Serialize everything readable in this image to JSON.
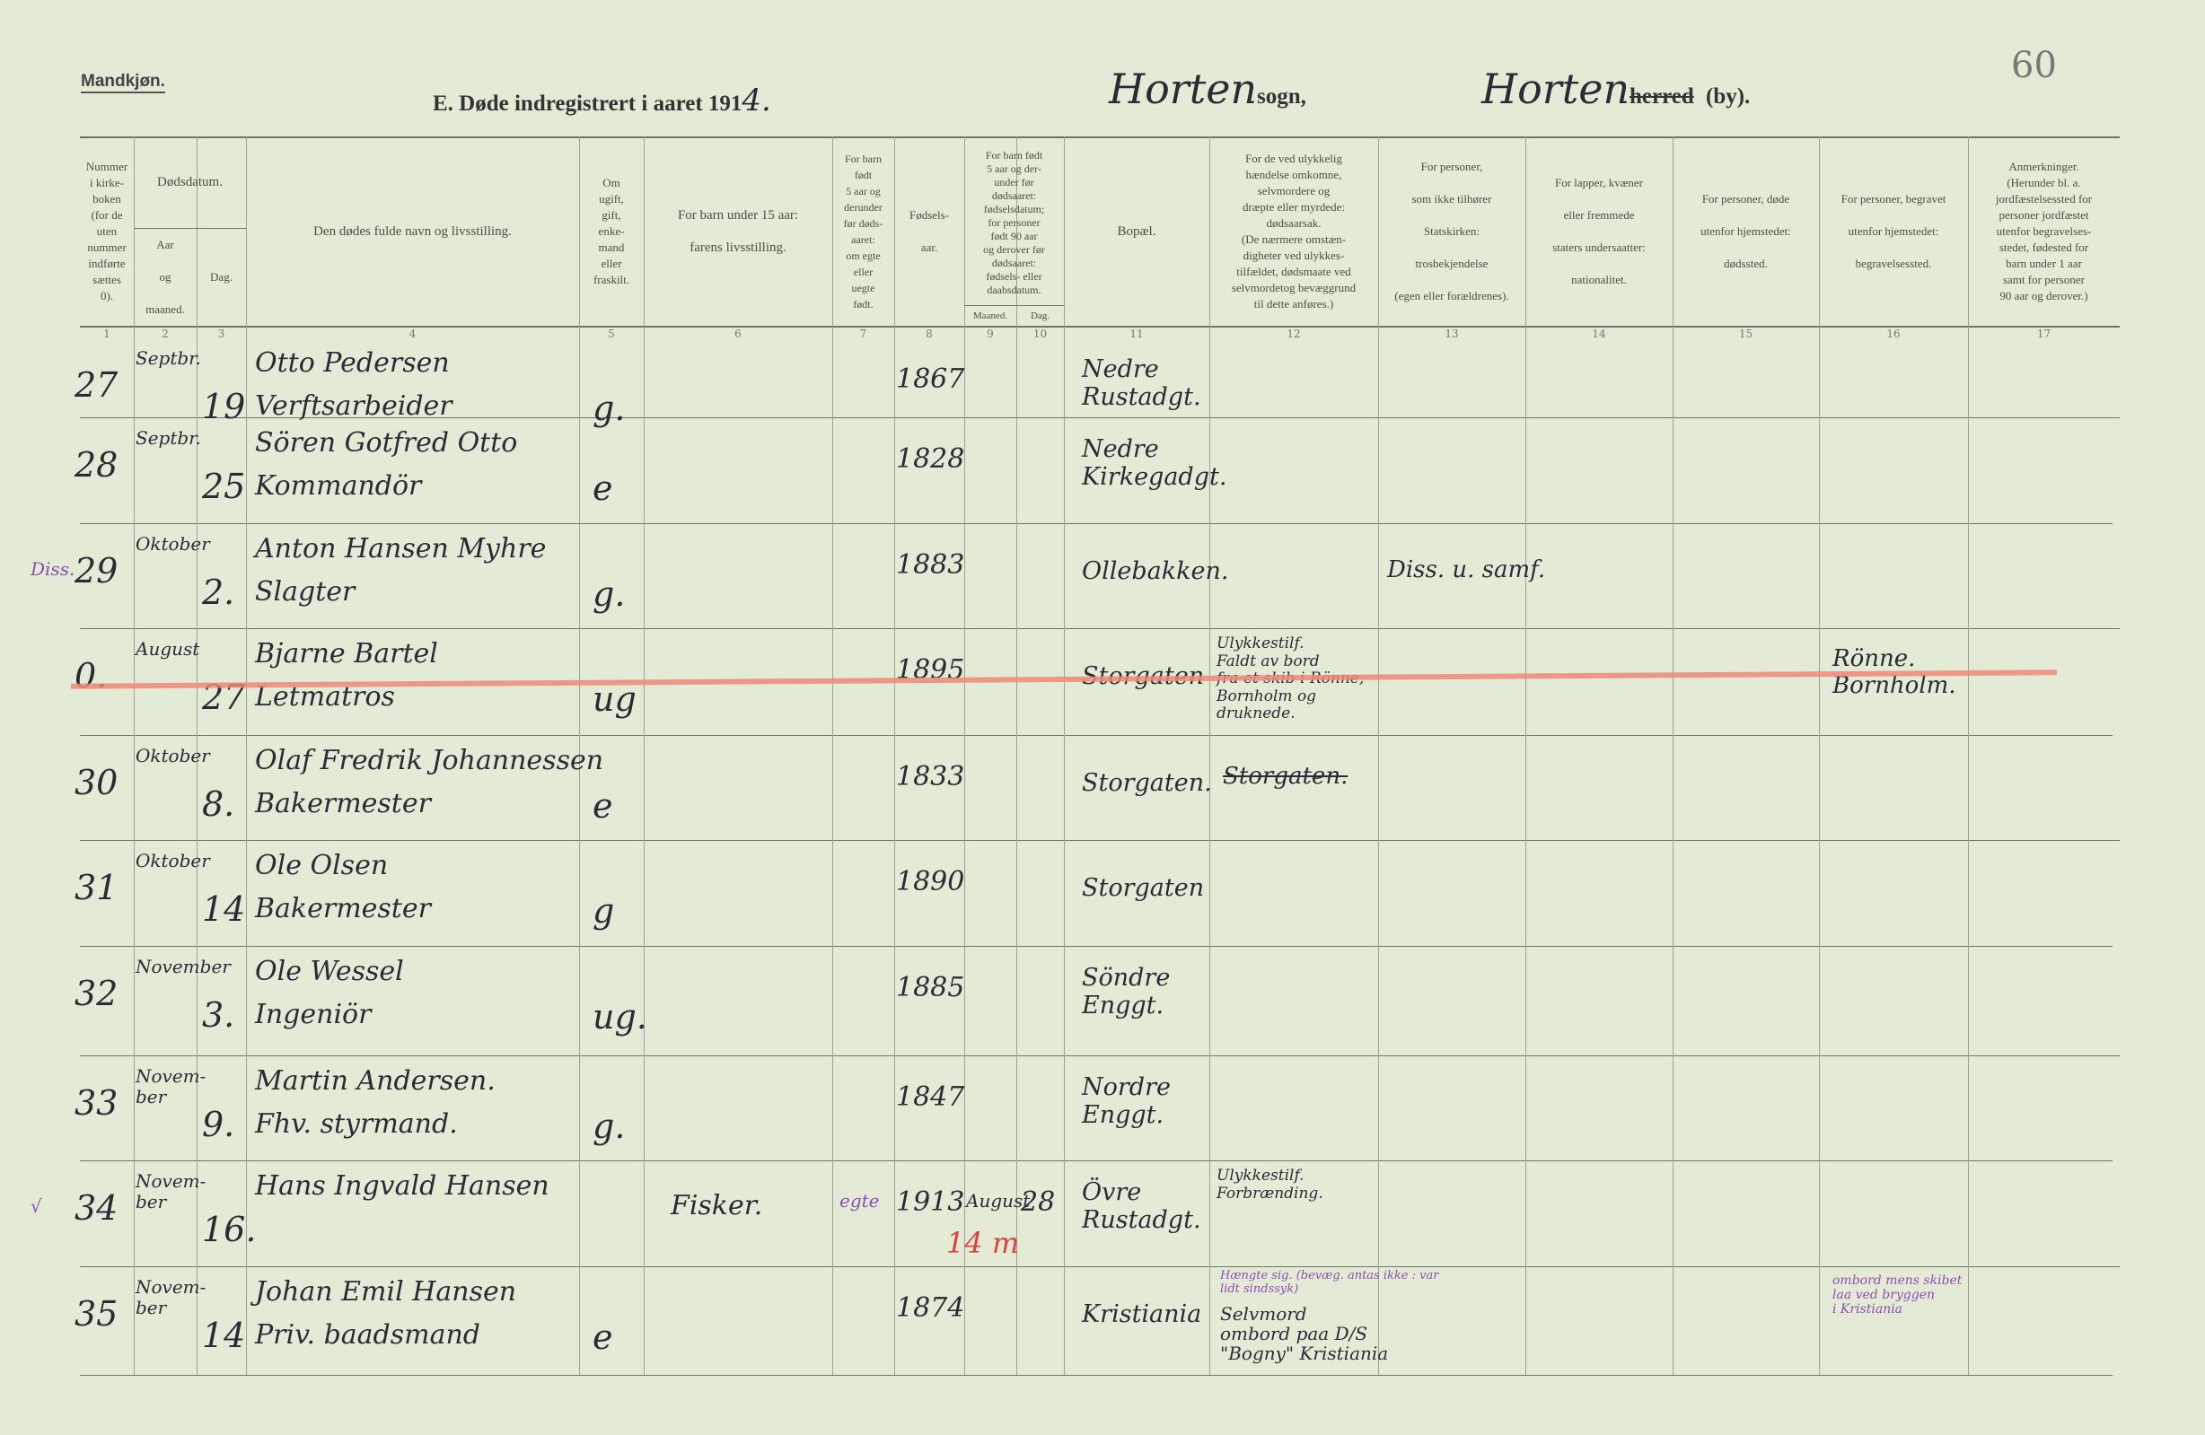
{
  "form": {
    "sex_label": "Mandkjøn.",
    "title_prefix": "E.  Døde indregistrert i aaret 191",
    "year_hand": "4.",
    "parish_hand": "Horten",
    "parish_label": "sogn,",
    "municipality_hand": "Horten",
    "municipality_struck": "herred",
    "municipality_label": "(by).",
    "page_number": "60"
  },
  "headers": {
    "c1": "Nummer\ni kirke-\nboken\n(for de\nuten\nnummer\nindførte\nsættes\n0).",
    "c2_3": "Dødsdatum.",
    "c2": "Aar\n\nog\n\nmaaned.",
    "c3": "Dag.",
    "c4": "Den dødes fulde navn og livsstilling.",
    "c5": "Om\nugift,\ngift,\nenke-\nmand\neller\nfraskilt.",
    "c6": "For barn under 15 aar:\n\nfarens livsstilling.",
    "c7": "For barn\nfødt\n5 aar og\nderunder\nfør døds-\naaret:\nom egte\neller\nuegte\nfødt.",
    "c8": "Fødsels-\n\naar.",
    "c9_10": "For barn født\n5 aar og der-\nunder før\ndødsaaret:\nfødselsdatum;\nfor personer\nfødt 90 aar\nog derover før\ndødsaaret:\nfødsels- eller\ndaabsdatum.",
    "c9": "Maaned.",
    "c10": "Dag.",
    "c11": "Bopæl.",
    "c12": "For de ved ulykkelig\nhændelse omkomne,\nselvmordere og\ndræpte eller myrdede:\ndødsaarsak.\n(De nærmere omstæn-\ndigheter ved ulykkes-\ntilfældet, dødsmaate ved\nselvmordetog bevæggrund\ntil dette anføres.)",
    "c13": "For personer,\n\nsom ikke tilhører\n\nStatskirken:\n\ntrosbekjendelse\n\n(egen eller forældrenes).",
    "c14": "For lapper, kvæner\n\neller fremmede\n\nstaters undersaatter:\n\nnationalitet.",
    "c15": "For personer, døde\n\nutenfor hjemstedet:\n\ndødssted.",
    "c16": "For personer, begravet\n\nutenfor hjemstedet:\n\nbegravelsessted.",
    "c17": "Anmerkninger.\n(Herunder bl. a.\njordfæstelsessted for\npersoner jordfæstet\nutenfor begravelses-\nstedet, fødested for\nbarn under 1 aar\nsamt for personer\n90 aar og derover.)",
    "column_numbers": [
      "1",
      "2",
      "3",
      "4",
      "5",
      "6",
      "7",
      "8",
      "9",
      "10",
      "11",
      "12",
      "13",
      "14",
      "15",
      "16",
      "17"
    ]
  },
  "rows": [
    {
      "no": "27",
      "month": "Septbr.",
      "day": "19",
      "name": "Otto Pedersen",
      "occupation": "Verftsarbeider",
      "status": "g.",
      "birth_year": "1867",
      "residence": "Nedre\nRustadgt."
    },
    {
      "no": "28",
      "month": "Septbr.",
      "day": "25",
      "name": "Sören Gotfred Otto",
      "occupation": "Kommandör",
      "status": "e",
      "birth_year": "1828",
      "residence": "Nedre\nKirkegadgt."
    },
    {
      "no": "29",
      "month": "Oktober",
      "day": "2.",
      "name": "Anton Hansen Myhre",
      "occupation": "Slagter",
      "status": "g.",
      "birth_year": "1883",
      "residence": "Ollebakken.",
      "religion": "Diss. u. samf.",
      "margin": "Diss."
    },
    {
      "no": "0.",
      "month": "August",
      "day": "27",
      "name": "Bjarne Bartel",
      "occupation": "Letmatros",
      "status": "ug",
      "birth_year": "1895",
      "residence": "Storgaten",
      "cause": "Ulykkestilf.\nFaldt av bord\nfra et skib i Rönne,\nBornholm og\ndruknede.",
      "burial_place": "Rönne.\nBornholm.",
      "struck": true
    },
    {
      "no": "30",
      "month": "Oktober",
      "day": "8.",
      "name": "Olaf Fredrik Johannessen",
      "occupation": "Bakermester",
      "status": "e",
      "birth_year": "1833",
      "residence": "Storgaten.",
      "cause_struck": "Storgaten."
    },
    {
      "no": "31",
      "month": "Oktober",
      "day": "14",
      "name": "Ole Olsen",
      "occupation": "Bakermester",
      "status": "g",
      "birth_year": "1890",
      "residence": "Storgaten"
    },
    {
      "no": "32",
      "month": "November",
      "day": "3.",
      "name": "Ole Wessel",
      "occupation": "Ingeniör",
      "status": "ug.",
      "birth_year": "1885",
      "residence": "Söndre\nEnggt."
    },
    {
      "no": "33",
      "month": "Novem-\nber",
      "day": "9.",
      "name": "Martin Andersen.",
      "occupation": "Fhv. styrmand.",
      "status": "g.",
      "birth_year": "1847",
      "residence": "Nordre\nEnggt."
    },
    {
      "no": "34",
      "month": "Novem-\nber",
      "day": "16.",
      "name": "Hans Ingvald Hansen",
      "father": "Fisker.",
      "legitimacy": "egte",
      "birth_year": "1913",
      "birth_month": "August",
      "birth_day": "28",
      "residence": "Övre\nRustadgt.",
      "cause": "Ulykkestilf.\nForbrænding.",
      "age_note": "14 m",
      "margin": "√"
    },
    {
      "no": "35",
      "month": "Novem-\nber",
      "day": "14",
      "name": "Johan Emil Hansen",
      "occupation": "Priv. baadsmand",
      "status": "e",
      "birth_year": "1874",
      "residence": "Kristiania",
      "cause": "Selvmord\nombord paa D/S\n\"Bogny\" Kristiania",
      "cause_note": "Hængte sig. (bevæg. antas ikke : var\nlidt sindssyk)",
      "remarks": "ombord mens skibet\nlaa ved bryggen\ni Kristiania"
    }
  ]
}
